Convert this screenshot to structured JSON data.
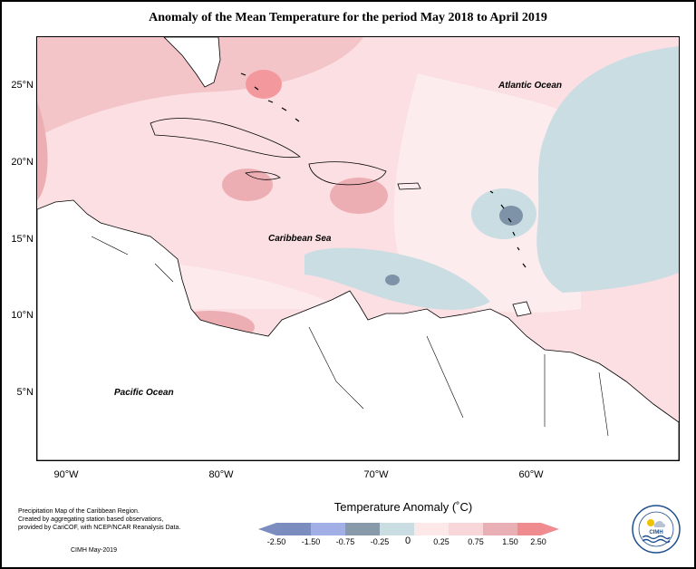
{
  "title": "Anomaly of the Mean Temperature for the period May 2018 to April 2019",
  "map": {
    "latitude_labels": [
      "25°N",
      "20°N",
      "15°N",
      "10°N",
      "5°N"
    ],
    "longitude_labels": [
      "90°W",
      "80°W",
      "70°W",
      "60°W"
    ],
    "region_labels": {
      "atlantic": "Atlantic Ocean",
      "caribbean": "Caribbean Sea",
      "pacific": "Pacific Ocean"
    }
  },
  "legend": {
    "title": "Temperature Anomaly (˚C)",
    "ticks": [
      "-2.50",
      "-1.50",
      "-0.75",
      "-0.25",
      "0",
      "0.25",
      "0.75",
      "1.50",
      "2.50"
    ],
    "colors": [
      "#7b8dbf",
      "#a2aee6",
      "#8899aa",
      "#c9dde3",
      "#fde8e9",
      "#f8d6da",
      "#e8b0b4",
      "#f08b90"
    ],
    "color_meaning": "blue = cooler than normal, red = warmer than normal"
  },
  "footnotes": {
    "line1": "Precipitation Map of the Caribbean Region.",
    "line2": "Created by aggregating station based observations,",
    "line3": "provided by CariCOF, with NCEP/NCAR Reanalysis Data.",
    "credit": "CIMH May-2019"
  },
  "logo": {
    "text": "CIMH"
  }
}
